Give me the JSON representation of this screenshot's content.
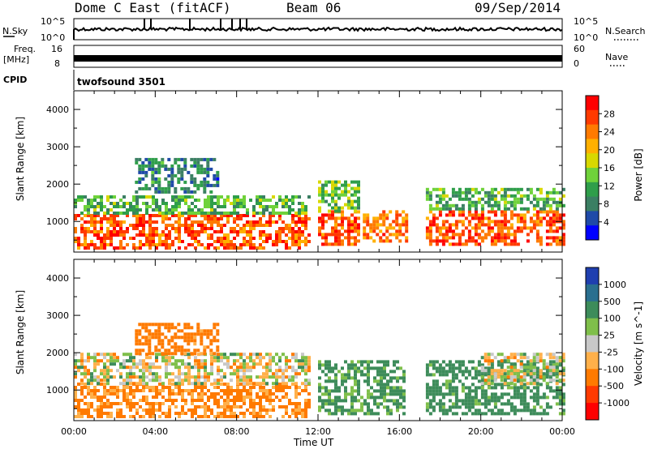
{
  "header": {
    "title": "Dome C East (fitACF)",
    "beam": "Beam 06",
    "date": "09/Sep/2014"
  },
  "top_panels": {
    "nsky_label": "N.Sky",
    "nsky_ticks": [
      "10^5",
      "10^0"
    ],
    "nsearch_label": "N.Search",
    "nsearch_ticks": [
      "10^5",
      "10^0"
    ],
    "freq_label": "Freq.",
    "freq_unit": "[MHz]",
    "freq_ticks": [
      "16",
      "8"
    ],
    "nave_label": "Nave",
    "nave_ticks": [
      "60",
      "0"
    ],
    "cpid_label": "CPID",
    "cpid_value": "twofsound 3501"
  },
  "colorbars": {
    "power": {
      "label": "Power [dB]",
      "ticks": [
        "28",
        "24",
        "20",
        "16",
        "12",
        "8",
        "4"
      ],
      "colors": [
        "#ff0000",
        "#ff3a00",
        "#ff7a00",
        "#ffb000",
        "#d8d800",
        "#6fd23a",
        "#2f9e4a",
        "#3b7f63",
        "#1f4aa8",
        "#0000ff"
      ]
    },
    "velocity": {
      "label": "Velocity [m s^-1]",
      "ticks": [
        "1000",
        "500",
        "100",
        "25",
        "-25",
        "-100",
        "-500",
        "-1000"
      ],
      "colors": [
        "#1f3fb0",
        "#2a6f8f",
        "#3d8c5a",
        "#7fbf4a",
        "#c8c8c8",
        "#ffb04a",
        "#ff7a00",
        "#ff3a00",
        "#ff0000"
      ]
    }
  },
  "chart_data": [
    {
      "type": "heatmap",
      "title": "Power",
      "xlabel": "Time UT",
      "ylabel": "Slant Range [km]",
      "x_ticks": [
        "00:00",
        "04:00",
        "08:00",
        "12:00",
        "16:00",
        "20:00",
        "00:00"
      ],
      "y_ticks": [
        1000,
        2000,
        3000,
        4000
      ],
      "xlim": [
        0,
        24
      ],
      "ylim": [
        180,
        4500
      ],
      "colorbar": "Power [dB]",
      "patches": [
        {
          "x": [
            0,
            11.5
          ],
          "y": [
            300,
            1200
          ],
          "value": 26
        },
        {
          "x": [
            0,
            11.5
          ],
          "y": [
            1200,
            1700
          ],
          "value": 12
        },
        {
          "x": [
            3,
            7
          ],
          "y": [
            1800,
            2700
          ],
          "value": 8
        },
        {
          "x": [
            12,
            14
          ],
          "y": [
            400,
            1300
          ],
          "value": 26
        },
        {
          "x": [
            12,
            14
          ],
          "y": [
            1300,
            2100
          ],
          "value": 14
        },
        {
          "x": [
            14.2,
            16.3
          ],
          "y": [
            500,
            1300
          ],
          "value": 24
        },
        {
          "x": [
            17.3,
            24
          ],
          "y": [
            400,
            1300
          ],
          "value": 26
        },
        {
          "x": [
            17.3,
            24
          ],
          "y": [
            1300,
            1900
          ],
          "value": 12
        }
      ]
    },
    {
      "type": "heatmap",
      "title": "Velocity",
      "xlabel": "Time UT",
      "ylabel": "Slant Range [km]",
      "x_ticks": [
        "00:00",
        "04:00",
        "08:00",
        "12:00",
        "16:00",
        "20:00",
        "00:00"
      ],
      "y_ticks": [
        1000,
        2000,
        3000,
        4000
      ],
      "xlim": [
        0,
        24
      ],
      "ylim": [
        180,
        4500
      ],
      "colorbar": "Velocity [m s^-1]",
      "patches": [
        {
          "x": [
            0,
            11.5
          ],
          "y": [
            300,
            1200
          ],
          "value": -150
        },
        {
          "x": [
            0,
            11.5
          ],
          "y": [
            1200,
            2000
          ],
          "value": 0
        },
        {
          "x": [
            3,
            7
          ],
          "y": [
            2000,
            2800
          ],
          "value": -200
        },
        {
          "x": [
            12,
            16.3
          ],
          "y": [
            400,
            1800
          ],
          "value": 150
        },
        {
          "x": [
            17.3,
            24
          ],
          "y": [
            400,
            1800
          ],
          "value": 200
        },
        {
          "x": [
            20,
            24
          ],
          "y": [
            1200,
            2000
          ],
          "value": 0
        }
      ]
    }
  ]
}
